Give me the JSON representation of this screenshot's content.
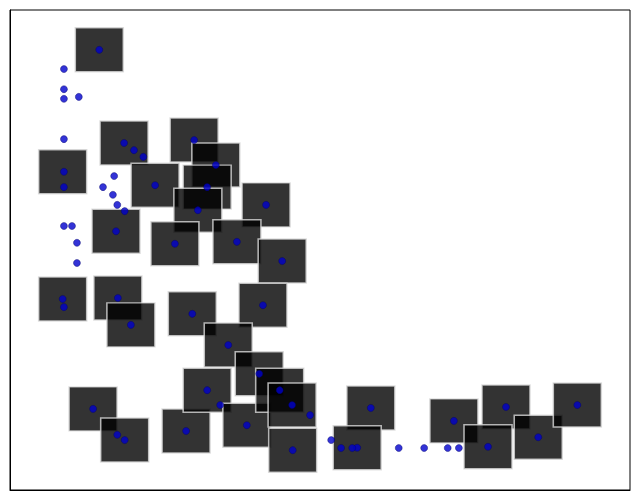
{
  "chart_data": {
    "type": "scatter",
    "xlim": [
      0,
      100
    ],
    "ylim": [
      0,
      100
    ],
    "tick_labels": false,
    "grid": false,
    "series": [
      {
        "type": "scatter",
        "marker": "image",
        "color": "#000000",
        "x": [
          14.4,
          8.5,
          18.4,
          29.7,
          33.2,
          23.4,
          31.8,
          30.3,
          41.3,
          17.1,
          26.6,
          36.6,
          43.9,
          8.5,
          17.4,
          19.5,
          29.4,
          40.8,
          35.2,
          40.2,
          13.4,
          18.5,
          28.4,
          31.8,
          38.2,
          43.5,
          45.5,
          45.6,
          58.2,
          56.0,
          71.6,
          80.0,
          77.1,
          85.2,
          91.5
        ],
        "values": [
          91.7,
          66.3,
          72.3,
          72.9,
          67.7,
          63.5,
          63.1,
          58.3,
          59.4,
          53.9,
          51.3,
          51.7,
          47.7,
          39.8,
          40.0,
          34.4,
          36.7,
          38.5,
          30.2,
          24.2,
          16.9,
          10.4,
          12.3,
          20.8,
          13.5,
          20.8,
          17.7,
          8.3,
          17.1,
          8.8,
          14.4,
          17.3,
          9.0,
          11.0,
          17.7
        ]
      },
      {
        "type": "scatter",
        "marker": "circle",
        "color": "#0000cc",
        "x": [
          14.4,
          18.4,
          29.7,
          33.2,
          23.4,
          31.8,
          30.3,
          41.3,
          17.1,
          26.6,
          36.6,
          43.9,
          8.5,
          17.4,
          19.5,
          29.4,
          40.8,
          35.2,
          40.2,
          13.4,
          18.5,
          28.4,
          31.8,
          38.2,
          43.5,
          45.5,
          45.6,
          58.2,
          56.0,
          71.6,
          80.0,
          77.1,
          85.2,
          91.5,
          8.7,
          8.7,
          8.7,
          11.1,
          8.7,
          8.7,
          8.7,
          20.0,
          21.5,
          16.8,
          15.0,
          16.6,
          17.3,
          18.5,
          8.7,
          10.0,
          10.8,
          10.8,
          8.7,
          33.9,
          48.4,
          51.8,
          53.4,
          55.2,
          62.7,
          66.8,
          70.6,
          72.4,
          17.3
        ],
        "values": [
          91.7,
          72.3,
          72.9,
          67.7,
          63.5,
          63.1,
          58.3,
          59.4,
          53.9,
          51.3,
          51.7,
          47.7,
          39.8,
          40.0,
          34.4,
          36.7,
          38.5,
          30.2,
          24.2,
          16.9,
          10.4,
          12.3,
          20.8,
          13.5,
          20.8,
          17.7,
          8.3,
          17.1,
          8.8,
          14.4,
          17.3,
          9.0,
          11.0,
          17.7,
          87.7,
          83.5,
          81.5,
          81.9,
          73.1,
          66.3,
          63.1,
          70.8,
          69.4,
          65.4,
          63.1,
          61.5,
          59.4,
          58.1,
          55.0,
          55.0,
          51.5,
          47.3,
          38.1,
          17.7,
          15.6,
          10.4,
          8.75,
          8.75,
          8.75,
          8.75,
          8.75,
          8.75,
          11.5
        ]
      }
    ]
  }
}
